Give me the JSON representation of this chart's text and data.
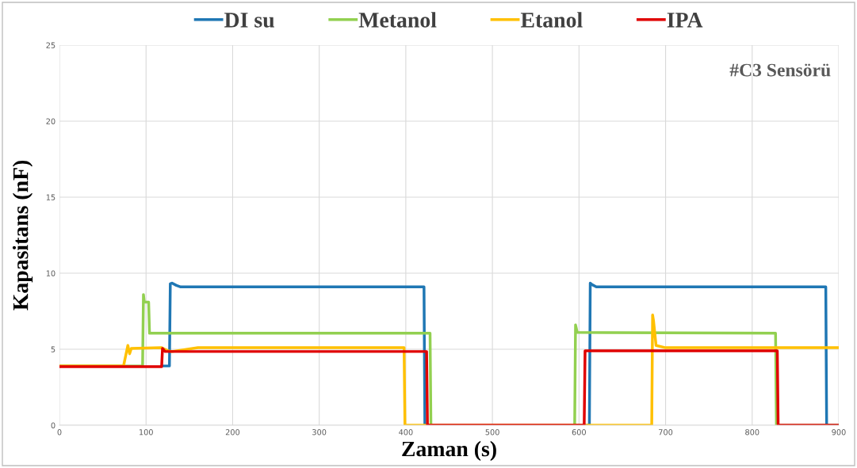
{
  "chart_data": {
    "type": "line",
    "xlabel": "Zaman (s)",
    "ylabel": "Kapasitans (nF)",
    "annotations": [
      "#C3 Sensörü"
    ],
    "xlim": [
      0,
      900
    ],
    "xticks": [
      0,
      100,
      200,
      300,
      400,
      500,
      600,
      700,
      800,
      900
    ],
    "ylim": [
      0,
      25
    ],
    "yticks": [
      0,
      5,
      10,
      15,
      20,
      25
    ],
    "grid": true,
    "legend": "top",
    "marker": "none",
    "line_style": "solid",
    "series": [
      {
        "name": "DI su",
        "color": "#1f77b4",
        "x": [
          119,
          127,
          128,
          130,
          135,
          140,
          421,
          422,
          612,
          613,
          615,
          620,
          885,
          886,
          900
        ],
        "values": [
          3.9,
          3.9,
          9.3,
          9.35,
          9.2,
          9.1,
          9.1,
          0,
          0,
          9.35,
          9.25,
          9.1,
          9.1,
          0,
          0
        ]
      },
      {
        "name": "Metanol",
        "color": "#92d050",
        "x": [
          0,
          96,
          97,
          98,
          103,
          104,
          428,
          429,
          595,
          596,
          598,
          827,
          828,
          900
        ],
        "values": [
          3.9,
          3.9,
          8.6,
          8.1,
          8.1,
          6.05,
          6.05,
          0,
          0,
          6.6,
          6.1,
          6.05,
          0,
          0
        ]
      },
      {
        "name": "Etanol",
        "color": "#ffc000",
        "x": [
          0,
          74,
          79,
          81,
          83,
          118,
          125,
          130,
          160,
          398,
          399,
          684,
          685,
          686,
          689,
          700,
          900
        ],
        "values": [
          3.9,
          3.9,
          5.25,
          4.7,
          5.05,
          5.1,
          4.9,
          4.85,
          5.1,
          5.1,
          0,
          0,
          7.25,
          6.9,
          5.25,
          5.1,
          5.1
        ]
      },
      {
        "name": "IPA",
        "color": "#e00000",
        "x": [
          0,
          118,
          119,
          122,
          424,
          425,
          606,
          607,
          829,
          830,
          900
        ],
        "values": [
          3.85,
          3.85,
          5.05,
          4.85,
          4.85,
          0,
          0,
          4.9,
          4.9,
          0,
          0
        ]
      }
    ]
  }
}
